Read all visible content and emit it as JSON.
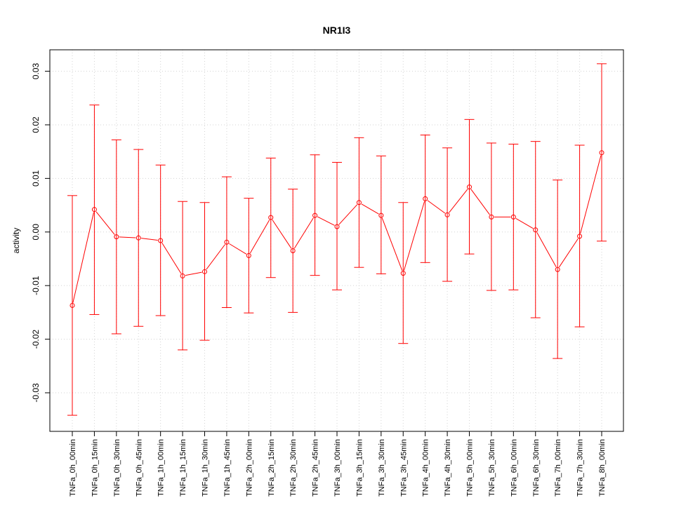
{
  "chart_data": {
    "type": "line",
    "title": "NR1I3",
    "xlabel": "",
    "ylabel": "activity",
    "ylim": [
      -0.0372,
      0.034
    ],
    "yticks": [
      -0.03,
      -0.02,
      -0.01,
      0.0,
      0.01,
      0.02,
      0.03
    ],
    "ytick_labels": [
      "-0.03",
      "-0.02",
      "-0.01",
      "0.00",
      "0.01",
      "0.02",
      "0.03"
    ],
    "grid": true,
    "color": "#ff0000",
    "categories": [
      "TNFa_0h_00min",
      "TNFa_0h_15min",
      "TNFa_0h_30min",
      "TNFa_0h_45min",
      "TNFa_1h_00min",
      "TNFa_1h_15min",
      "TNFa_1h_30min",
      "TNFa_1h_45min",
      "TNFa_2h_00min",
      "TNFa_2h_15min",
      "TNFa_2h_30min",
      "TNFa_2h_45min",
      "TNFa_3h_00min",
      "TNFa_3h_15min",
      "TNFa_3h_30min",
      "TNFa_3h_45min",
      "TNFa_4h_00min",
      "TNFa_4h_30min",
      "TNFa_5h_00min",
      "TNFa_5h_30min",
      "TNFa_6h_00min",
      "TNFa_6h_30min",
      "TNFa_7h_00min",
      "TNFa_7h_30min",
      "TNFa_8h_00min"
    ],
    "values": [
      -0.0137,
      0.0042,
      -0.0009,
      -0.0011,
      -0.0016,
      -0.0082,
      -0.0074,
      -0.0019,
      -0.0044,
      0.0027,
      -0.0035,
      0.0031,
      0.001,
      0.0055,
      0.0031,
      -0.0077,
      0.0062,
      0.0032,
      0.0084,
      0.0028,
      0.0028,
      0.0004,
      -0.007,
      -0.0008,
      0.0148
    ],
    "upper": [
      0.0068,
      0.0237,
      0.0172,
      0.0154,
      0.0125,
      0.0057,
      0.0055,
      0.0103,
      0.0063,
      0.0138,
      0.008,
      0.0144,
      0.013,
      0.0176,
      0.0142,
      0.0055,
      0.0181,
      0.0157,
      0.021,
      0.0166,
      0.0164,
      0.0169,
      0.0097,
      0.0162,
      0.0314
    ],
    "lower": [
      -0.0342,
      -0.0154,
      -0.019,
      -0.0176,
      -0.0156,
      -0.022,
      -0.0202,
      -0.0141,
      -0.0151,
      -0.0085,
      -0.015,
      -0.0081,
      -0.0108,
      -0.0066,
      -0.0078,
      -0.0208,
      -0.0057,
      -0.0092,
      -0.0041,
      -0.0109,
      -0.0108,
      -0.016,
      -0.0236,
      -0.0177,
      -0.0017
    ]
  }
}
